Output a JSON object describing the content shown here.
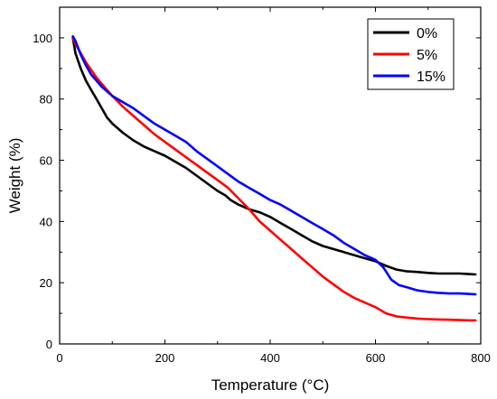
{
  "chart_data": {
    "type": "line",
    "xlabel": "Temperature (°C)",
    "ylabel": "Weight (%)",
    "xlim": [
      0,
      800
    ],
    "ylim": [
      0,
      110
    ],
    "xticks": [
      "0",
      "200",
      "400",
      "600",
      "800"
    ],
    "yticks": [
      "0",
      "20",
      "40",
      "60",
      "80",
      "100"
    ],
    "grid": false,
    "legend_position": "top-right",
    "series": [
      {
        "name": "0%",
        "color": "#000000",
        "x": [
          25,
          30,
          40,
          50,
          60,
          70,
          80,
          90,
          100,
          120,
          140,
          160,
          180,
          200,
          220,
          240,
          260,
          280,
          300,
          315,
          325,
          340,
          360,
          380,
          400,
          420,
          440,
          460,
          480,
          500,
          520,
          540,
          560,
          580,
          600,
          620,
          640,
          660,
          680,
          700,
          720,
          740,
          760,
          780,
          790
        ],
        "y": [
          100,
          95,
          90,
          86,
          83,
          80,
          77,
          74,
          72,
          69,
          66.5,
          64.5,
          63,
          61.5,
          59.5,
          57.5,
          55,
          52.5,
          50,
          48.5,
          47,
          45.5,
          44,
          43,
          41.5,
          39.5,
          37.5,
          35.5,
          33.5,
          32,
          31,
          30,
          29,
          28,
          27,
          25.5,
          24.3,
          23.7,
          23.5,
          23.2,
          23,
          23,
          23,
          22.8,
          22.7
        ]
      },
      {
        "name": "5%",
        "color": "#ff0000",
        "x": [
          25,
          30,
          40,
          50,
          60,
          70,
          80,
          100,
          120,
          140,
          160,
          180,
          200,
          220,
          240,
          260,
          280,
          300,
          320,
          340,
          360,
          380,
          400,
          420,
          440,
          460,
          480,
          500,
          520,
          540,
          560,
          580,
          600,
          620,
          640,
          660,
          680,
          700,
          720,
          740,
          760,
          780,
          790
        ],
        "y": [
          100,
          98,
          95,
          92,
          89.5,
          87,
          85,
          81,
          77.5,
          74.5,
          71.5,
          68.5,
          66,
          63.5,
          61,
          58.5,
          56,
          53.5,
          51,
          47.5,
          44,
          40,
          37,
          34,
          31,
          28,
          25,
          22,
          19.5,
          17,
          15,
          13.5,
          12,
          10,
          9,
          8.6,
          8.3,
          8.1,
          8,
          7.9,
          7.8,
          7.7,
          7.7
        ]
      },
      {
        "name": "15%",
        "color": "#0000ff",
        "x": [
          25,
          30,
          40,
          50,
          60,
          70,
          80,
          100,
          120,
          140,
          160,
          180,
          200,
          220,
          240,
          260,
          280,
          300,
          320,
          340,
          360,
          380,
          400,
          420,
          440,
          460,
          480,
          500,
          520,
          540,
          560,
          580,
          600,
          615,
          630,
          645,
          660,
          680,
          700,
          720,
          740,
          760,
          780,
          790
        ],
        "y": [
          100.5,
          99,
          94.5,
          91,
          88,
          86,
          84,
          81,
          79,
          77,
          74.5,
          72,
          70,
          68,
          66,
          63,
          60.5,
          58,
          55.5,
          53,
          51,
          49,
          47,
          45.5,
          43.5,
          41.5,
          39.5,
          37.5,
          35.5,
          33,
          31,
          29,
          27.5,
          25,
          21,
          19.2,
          18.5,
          17.5,
          17,
          16.7,
          16.5,
          16.5,
          16.3,
          16.2
        ]
      }
    ]
  }
}
